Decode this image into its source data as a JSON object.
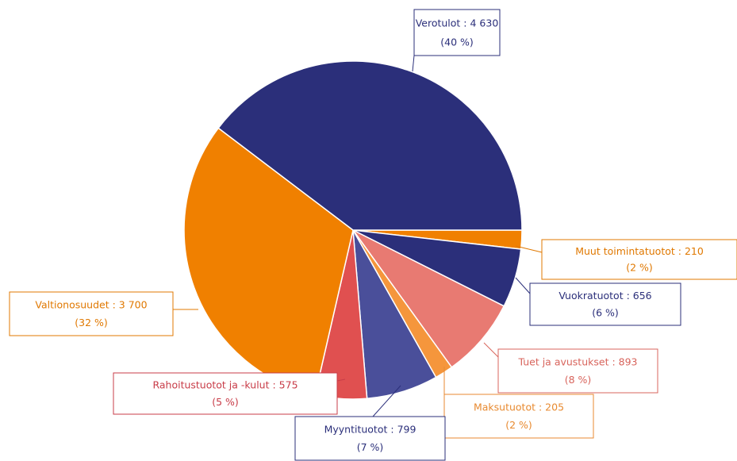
{
  "chart_data": {
    "type": "pie",
    "categories": [
      "Muut toimintatuotot",
      "Vuokratuotot",
      "Tuet ja avustukset",
      "Maksutuotot",
      "Myyntituotot",
      "Rahoitustuotot ja -kulut",
      "Valtionosuudet",
      "Verotulot"
    ],
    "label_separator": " : ",
    "values": [
      210,
      656,
      893,
      205,
      799,
      575,
      3700,
      4630
    ],
    "value_labels": [
      "210",
      "656",
      "893",
      "205",
      "799",
      "575",
      "3 700",
      "4 630"
    ],
    "percents": [
      2,
      6,
      8,
      2,
      7,
      5,
      32,
      40
    ],
    "percent_labels": [
      "(2 %)",
      "(6 %)",
      "(8 %)",
      "(2 %)",
      "(7 %)",
      "(5 %)",
      "(32 %)",
      "(40 %)"
    ],
    "colors": [
      "#f08000",
      "#2b2f7a",
      "#e87a72",
      "#f5963c",
      "#4a4f9a",
      "#e05050",
      "#f08000",
      "#2b2f7a"
    ],
    "label_colors": [
      "#e07800",
      "#2b2f7a",
      "#d8645c",
      "#e88a30",
      "#2b2f7a",
      "#c83c48",
      "#e07800",
      "#2b2f7a"
    ]
  }
}
